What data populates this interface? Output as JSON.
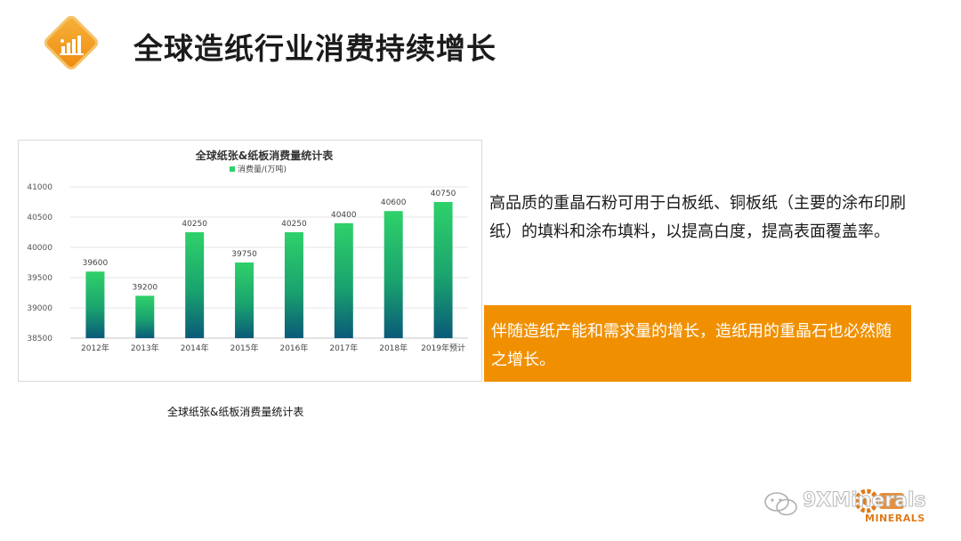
{
  "page": {
    "title": "全球造纸行业消费持续增长",
    "title_icon": "bar-chart-icon",
    "accent_color": "#f29a1f",
    "caption": "全球纸张&纸板消费量统计表"
  },
  "chart_data": {
    "type": "bar",
    "title": "全球纸张&纸板消费量统计表",
    "legend": {
      "position": "top",
      "label": "消费量/(万吨)"
    },
    "categories": [
      "2012年",
      "2013年",
      "2014年",
      "2015年",
      "2016年",
      "2017年",
      "2018年",
      "2019年预计"
    ],
    "series": [
      {
        "name": "消费量/(万吨)",
        "values": [
          39600,
          39200,
          40250,
          39750,
          40250,
          40400,
          40600,
          40750
        ]
      }
    ],
    "data_labels": [
      "39600",
      "39200",
      "40250",
      "39750",
      "40250",
      "40400",
      "40600",
      "40750"
    ],
    "ylim": [
      38500,
      41000
    ],
    "yticks": [
      38500,
      39000,
      39500,
      40000,
      40500,
      41000
    ],
    "ytick_labels": [
      "38500",
      "39000",
      "39500",
      "40000",
      "40500",
      "41000"
    ],
    "grid": true,
    "bar_color_top": "#2fd16a",
    "bar_color_bottom": "#0a5a78"
  },
  "content": {
    "description": "高品质的重晶石粉可用于白板纸、铜板纸（主要的涂布印刷纸）的填料和涂布填料，以提高白度，提高表面覆盖率。",
    "highlight": "伴随造纸产能和需求量的增长，造纸用的重晶石也必然随之增长。",
    "highlight_color": "#f09000"
  },
  "watermark": {
    "icon": "wechat-icon",
    "text": "9XMinerals",
    "logo": "gear-logo-icon",
    "logo_sub": "MINERALS"
  }
}
